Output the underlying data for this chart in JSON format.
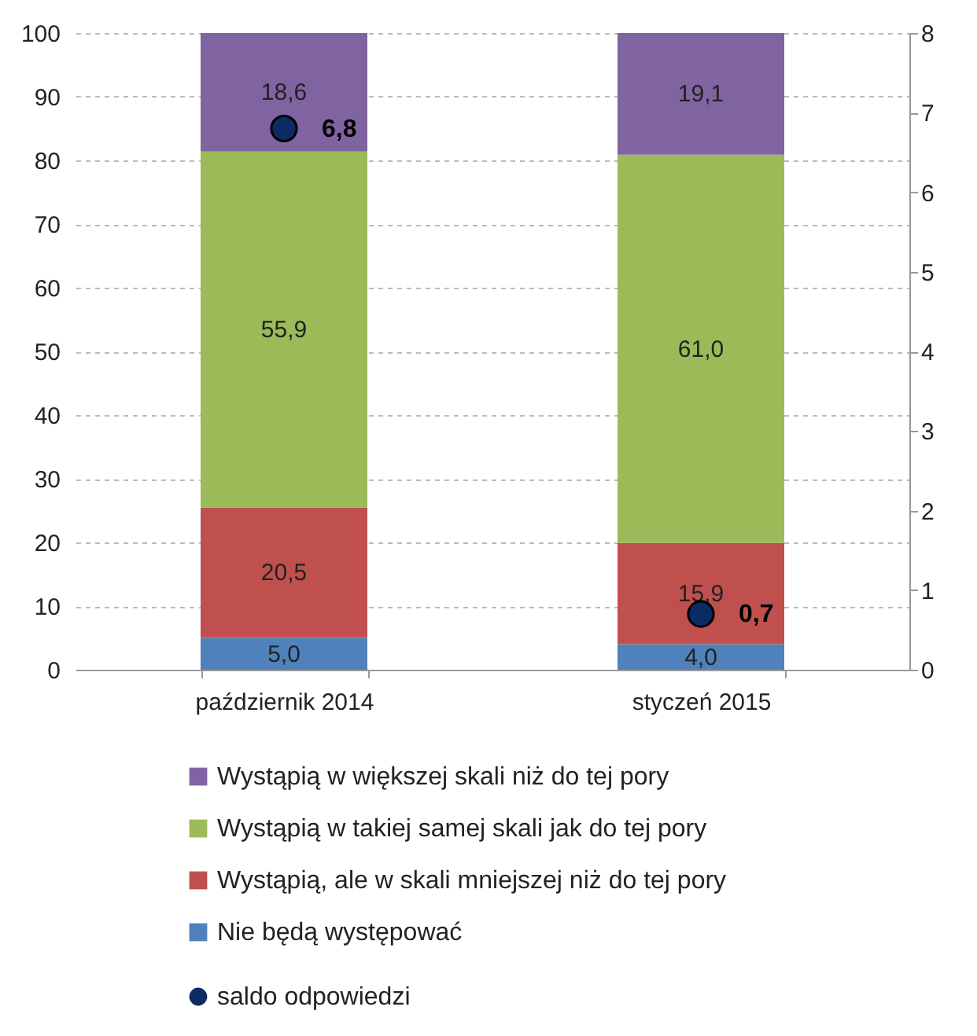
{
  "chart_data": {
    "type": "bar",
    "stacked": true,
    "categories": [
      "październik 2014",
      "styczeń 2015"
    ],
    "series": [
      {
        "name": "Nie będą występować",
        "color": "#4f81bd",
        "values": [
          5.0,
          4.0
        ],
        "value_labels": [
          "5,0",
          "4,0"
        ]
      },
      {
        "name": "Wystąpią, ale w skali mniejszej niż do tej pory",
        "color": "#c0504d",
        "values": [
          20.5,
          15.9
        ],
        "value_labels": [
          "20,5",
          "15,9"
        ]
      },
      {
        "name": "Wystąpią w takiej samej skali jak do tej pory",
        "color": "#9bbb59",
        "values": [
          55.9,
          61.0
        ],
        "value_labels": [
          "55,9",
          "61,0"
        ]
      },
      {
        "name": "Wystąpią w większej skali niż do tej pory",
        "color": "#8064a2",
        "values": [
          18.6,
          19.1
        ],
        "value_labels": [
          "18,6",
          "19,1"
        ]
      },
      {
        "name": "saldo odpowiedzi",
        "type": "scatter",
        "axis": "y2",
        "color": "#0d2a63",
        "x": [
          "październik 2014",
          "styczeń 2015"
        ],
        "values": [
          6.8,
          0.7
        ],
        "value_labels": [
          "6,8",
          "0,7"
        ]
      }
    ],
    "ylim": [
      0,
      100
    ],
    "yticks": [
      0,
      10,
      20,
      30,
      40,
      50,
      60,
      70,
      80,
      90,
      100
    ],
    "y2lim": [
      0,
      8
    ],
    "y2ticks": [
      0,
      1,
      2,
      3,
      4,
      5,
      6,
      7,
      8
    ],
    "grid": "y",
    "legend": "bottom",
    "marker": "circle"
  }
}
